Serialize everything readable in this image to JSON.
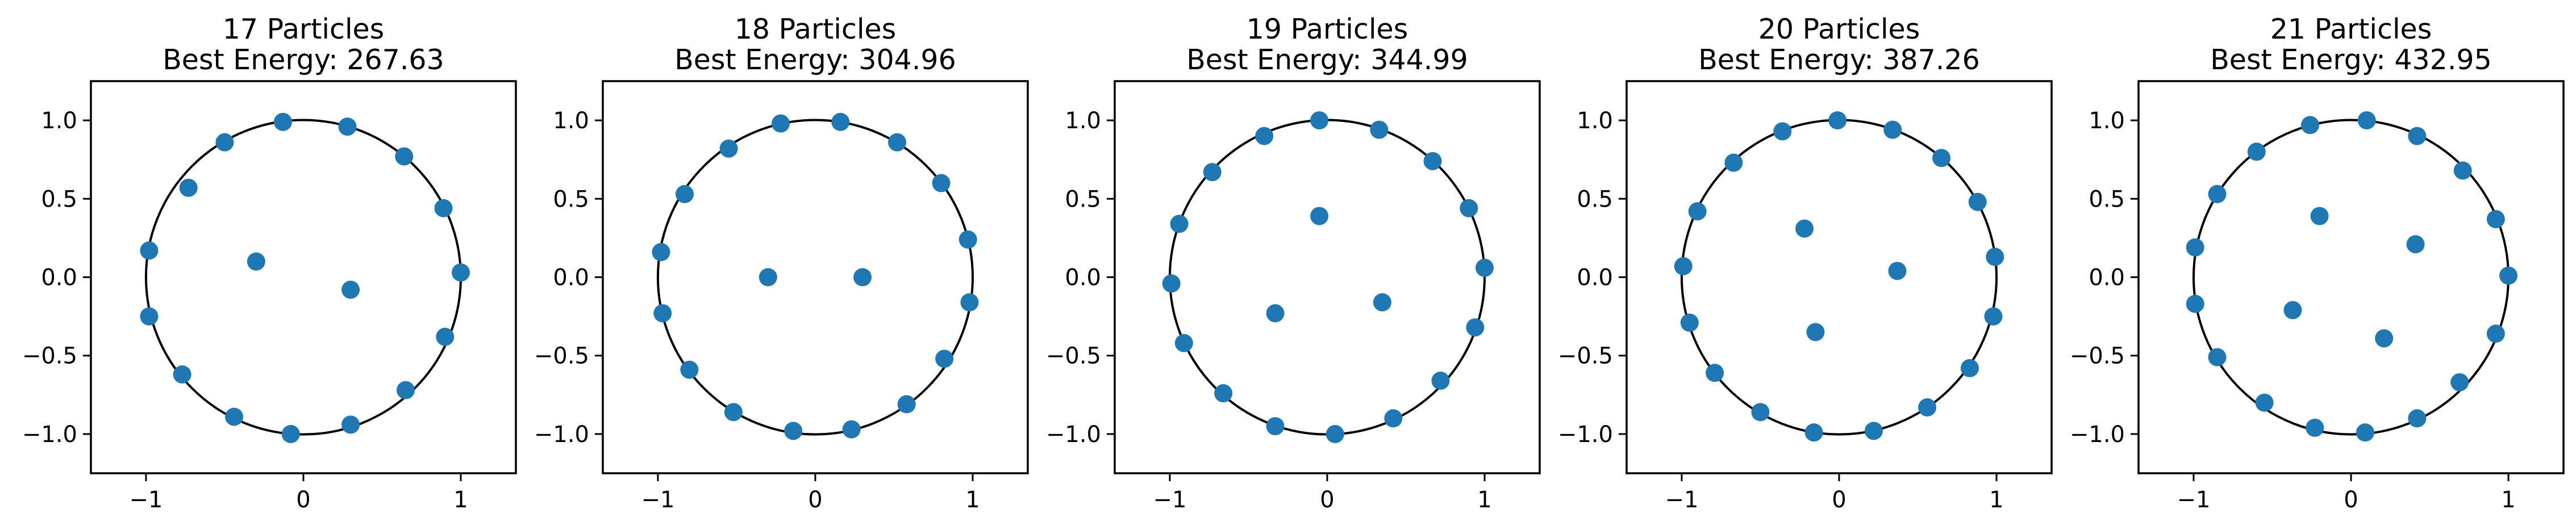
{
  "chart_data": [
    {
      "type": "scatter",
      "title": "17 Particles",
      "subtitle": "Best Energy: 267.63",
      "xlabel": "",
      "ylabel": "",
      "xlim": [
        -1.35,
        1.35
      ],
      "ylim": [
        -1.25,
        1.25
      ],
      "xticks": [
        -1,
        0,
        1
      ],
      "yticks": [
        1.0,
        0.5,
        0.0,
        -0.5,
        -1.0
      ],
      "xtick_labels": [
        "−1",
        "0",
        "1"
      ],
      "ytick_labels": [
        "1.0",
        "0.5",
        "0.0",
        "−0.5",
        "−1.0"
      ],
      "boundary": "unit-circle",
      "grid": false,
      "points": [
        [
          -0.13,
          0.99
        ],
        [
          0.28,
          0.96
        ],
        [
          0.64,
          0.77
        ],
        [
          0.89,
          0.44
        ],
        [
          1.0,
          0.03
        ],
        [
          0.9,
          -0.38
        ],
        [
          0.65,
          -0.72
        ],
        [
          0.3,
          -0.94
        ],
        [
          -0.08,
          -1.0
        ],
        [
          -0.44,
          -0.89
        ],
        [
          -0.77,
          -0.62
        ],
        [
          -0.98,
          -0.25
        ],
        [
          -0.98,
          0.17
        ],
        [
          -0.73,
          0.57
        ],
        [
          -0.5,
          0.86
        ],
        [
          -0.3,
          0.1
        ],
        [
          0.3,
          -0.08
        ]
      ]
    },
    {
      "type": "scatter",
      "title": "18 Particles",
      "subtitle": "Best Energy: 304.96",
      "xlabel": "",
      "ylabel": "",
      "xlim": [
        -1.35,
        1.35
      ],
      "ylim": [
        -1.25,
        1.25
      ],
      "xticks": [
        -1,
        0,
        1
      ],
      "yticks": [
        1.0,
        0.5,
        0.0,
        -0.5,
        -1.0
      ],
      "xtick_labels": [
        "−1",
        "0",
        "1"
      ],
      "ytick_labels": [
        "1.0",
        "0.5",
        "0.0",
        "−0.5",
        "−1.0"
      ],
      "boundary": "unit-circle",
      "grid": false,
      "points": [
        [
          0.16,
          0.99
        ],
        [
          0.52,
          0.86
        ],
        [
          0.8,
          0.6
        ],
        [
          0.97,
          0.24
        ],
        [
          0.98,
          -0.16
        ],
        [
          0.82,
          -0.52
        ],
        [
          0.58,
          -0.81
        ],
        [
          0.23,
          -0.97
        ],
        [
          -0.14,
          -0.98
        ],
        [
          -0.52,
          -0.86
        ],
        [
          -0.8,
          -0.59
        ],
        [
          -0.97,
          -0.23
        ],
        [
          -0.98,
          0.16
        ],
        [
          -0.83,
          0.53
        ],
        [
          -0.55,
          0.82
        ],
        [
          -0.22,
          0.98
        ],
        [
          -0.3,
          0.0
        ],
        [
          0.3,
          0.0
        ]
      ]
    },
    {
      "type": "scatter",
      "title": "19 Particles",
      "subtitle": "Best Energy: 344.99",
      "xlabel": "",
      "ylabel": "",
      "xlim": [
        -1.35,
        1.35
      ],
      "ylim": [
        -1.25,
        1.25
      ],
      "xticks": [
        -1,
        0,
        1
      ],
      "yticks": [
        1.0,
        0.5,
        0.0,
        -0.5,
        -1.0
      ],
      "xtick_labels": [
        "−1",
        "0",
        "1"
      ],
      "ytick_labels": [
        "1.0",
        "0.5",
        "0.0",
        "−0.5",
        "−1.0"
      ],
      "boundary": "unit-circle",
      "grid": false,
      "points": [
        [
          -0.05,
          1.0
        ],
        [
          0.33,
          0.94
        ],
        [
          0.67,
          0.74
        ],
        [
          0.9,
          0.44
        ],
        [
          1.0,
          0.06
        ],
        [
          0.94,
          -0.32
        ],
        [
          0.72,
          -0.66
        ],
        [
          0.42,
          -0.9
        ],
        [
          0.05,
          -1.0
        ],
        [
          -0.33,
          -0.95
        ],
        [
          -0.66,
          -0.74
        ],
        [
          -0.91,
          -0.42
        ],
        [
          -0.99,
          -0.04
        ],
        [
          -0.94,
          0.34
        ],
        [
          -0.73,
          0.67
        ],
        [
          -0.4,
          0.9
        ],
        [
          -0.05,
          0.39
        ],
        [
          -0.33,
          -0.23
        ],
        [
          0.35,
          -0.16
        ]
      ]
    },
    {
      "type": "scatter",
      "title": "20 Particles",
      "subtitle": "Best Energy: 387.26",
      "xlabel": "",
      "ylabel": "",
      "xlim": [
        -1.35,
        1.35
      ],
      "ylim": [
        -1.25,
        1.25
      ],
      "xticks": [
        -1,
        0,
        1
      ],
      "yticks": [
        1.0,
        0.5,
        0.0,
        -0.5,
        -1.0
      ],
      "xtick_labels": [
        "−1",
        "0",
        "1"
      ],
      "ytick_labels": [
        "1.0",
        "0.5",
        "0.0",
        "−0.5",
        "−1.0"
      ],
      "boundary": "unit-circle",
      "grid": false,
      "points": [
        [
          -0.01,
          1.0
        ],
        [
          0.34,
          0.94
        ],
        [
          0.65,
          0.76
        ],
        [
          0.88,
          0.48
        ],
        [
          0.99,
          0.13
        ],
        [
          0.98,
          -0.25
        ],
        [
          0.83,
          -0.58
        ],
        [
          0.56,
          -0.83
        ],
        [
          0.22,
          -0.98
        ],
        [
          -0.16,
          -0.99
        ],
        [
          -0.5,
          -0.86
        ],
        [
          -0.79,
          -0.61
        ],
        [
          -0.95,
          -0.29
        ],
        [
          -0.99,
          0.07
        ],
        [
          -0.9,
          0.42
        ],
        [
          -0.67,
          0.73
        ],
        [
          -0.36,
          0.93
        ],
        [
          -0.22,
          0.31
        ],
        [
          0.37,
          0.04
        ],
        [
          -0.15,
          -0.35
        ]
      ]
    },
    {
      "type": "scatter",
      "title": "21 Particles",
      "subtitle": "Best Energy: 432.95",
      "xlabel": "",
      "ylabel": "",
      "xlim": [
        -1.35,
        1.35
      ],
      "ylim": [
        -1.25,
        1.25
      ],
      "xticks": [
        -1,
        0,
        1
      ],
      "yticks": [
        1.0,
        0.5,
        0.0,
        -0.5,
        -1.0
      ],
      "xtick_labels": [
        "−1",
        "0",
        "1"
      ],
      "ytick_labels": [
        "1.0",
        "0.5",
        "0.0",
        "−0.5",
        "−1.0"
      ],
      "boundary": "unit-circle",
      "grid": false,
      "points": [
        [
          0.1,
          1.0
        ],
        [
          0.42,
          0.9
        ],
        [
          0.71,
          0.68
        ],
        [
          0.92,
          0.37
        ],
        [
          1.0,
          0.01
        ],
        [
          0.92,
          -0.36
        ],
        [
          0.69,
          -0.67
        ],
        [
          0.42,
          -0.9
        ],
        [
          0.09,
          -0.99
        ],
        [
          -0.23,
          -0.96
        ],
        [
          -0.55,
          -0.8
        ],
        [
          -0.85,
          -0.51
        ],
        [
          -0.99,
          -0.17
        ],
        [
          -0.99,
          0.19
        ],
        [
          -0.85,
          0.53
        ],
        [
          -0.6,
          0.8
        ],
        [
          -0.26,
          0.97
        ],
        [
          -0.2,
          0.39
        ],
        [
          0.41,
          0.21
        ],
        [
          -0.37,
          -0.21
        ],
        [
          0.21,
          -0.39
        ]
      ]
    }
  ],
  "style": {
    "marker_color": "#1f77b4",
    "boundary_color": "#000000",
    "axes_color": "#000000"
  }
}
